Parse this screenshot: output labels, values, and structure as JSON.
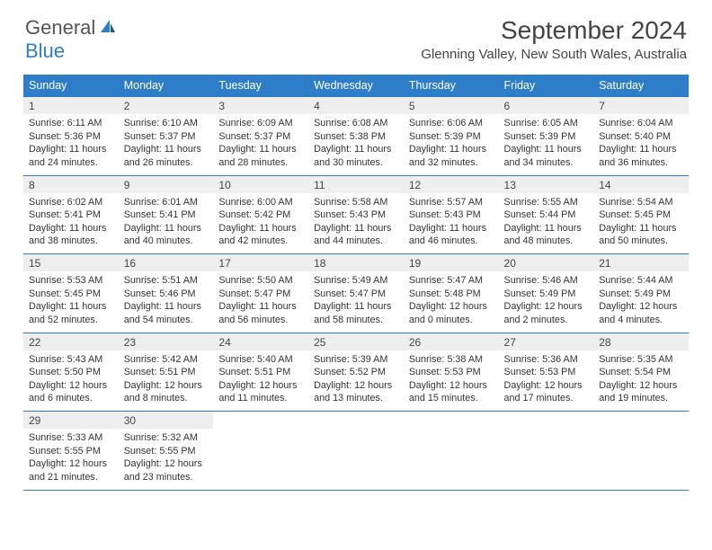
{
  "brand": {
    "text1": "General",
    "text2": "Blue"
  },
  "title": "September 2024",
  "location": "Glenning Valley, New South Wales, Australia",
  "colors": {
    "header_bg": "#2d7dc9",
    "header_text": "#ffffff",
    "daynum_bg": "#eeeeee",
    "border": "#2d7dc9",
    "body_text": "#333333",
    "title_text": "#444444",
    "logo_gray": "#555555",
    "logo_blue": "#2d7dc9",
    "page_bg": "#ffffff"
  },
  "typography": {
    "title_fontsize": 28,
    "location_fontsize": 15,
    "header_fontsize": 12.5,
    "daynum_fontsize": 12,
    "body_fontsize": 10.8
  },
  "calendar": {
    "type": "table",
    "columns": [
      "Sunday",
      "Monday",
      "Tuesday",
      "Wednesday",
      "Thursday",
      "Friday",
      "Saturday"
    ],
    "weeks": [
      [
        {
          "n": "1",
          "sr": "Sunrise: 6:11 AM",
          "ss": "Sunset: 5:36 PM",
          "d1": "Daylight: 11 hours",
          "d2": "and 24 minutes."
        },
        {
          "n": "2",
          "sr": "Sunrise: 6:10 AM",
          "ss": "Sunset: 5:37 PM",
          "d1": "Daylight: 11 hours",
          "d2": "and 26 minutes."
        },
        {
          "n": "3",
          "sr": "Sunrise: 6:09 AM",
          "ss": "Sunset: 5:37 PM",
          "d1": "Daylight: 11 hours",
          "d2": "and 28 minutes."
        },
        {
          "n": "4",
          "sr": "Sunrise: 6:08 AM",
          "ss": "Sunset: 5:38 PM",
          "d1": "Daylight: 11 hours",
          "d2": "and 30 minutes."
        },
        {
          "n": "5",
          "sr": "Sunrise: 6:06 AM",
          "ss": "Sunset: 5:39 PM",
          "d1": "Daylight: 11 hours",
          "d2": "and 32 minutes."
        },
        {
          "n": "6",
          "sr": "Sunrise: 6:05 AM",
          "ss": "Sunset: 5:39 PM",
          "d1": "Daylight: 11 hours",
          "d2": "and 34 minutes."
        },
        {
          "n": "7",
          "sr": "Sunrise: 6:04 AM",
          "ss": "Sunset: 5:40 PM",
          "d1": "Daylight: 11 hours",
          "d2": "and 36 minutes."
        }
      ],
      [
        {
          "n": "8",
          "sr": "Sunrise: 6:02 AM",
          "ss": "Sunset: 5:41 PM",
          "d1": "Daylight: 11 hours",
          "d2": "and 38 minutes."
        },
        {
          "n": "9",
          "sr": "Sunrise: 6:01 AM",
          "ss": "Sunset: 5:41 PM",
          "d1": "Daylight: 11 hours",
          "d2": "and 40 minutes."
        },
        {
          "n": "10",
          "sr": "Sunrise: 6:00 AM",
          "ss": "Sunset: 5:42 PM",
          "d1": "Daylight: 11 hours",
          "d2": "and 42 minutes."
        },
        {
          "n": "11",
          "sr": "Sunrise: 5:58 AM",
          "ss": "Sunset: 5:43 PM",
          "d1": "Daylight: 11 hours",
          "d2": "and 44 minutes."
        },
        {
          "n": "12",
          "sr": "Sunrise: 5:57 AM",
          "ss": "Sunset: 5:43 PM",
          "d1": "Daylight: 11 hours",
          "d2": "and 46 minutes."
        },
        {
          "n": "13",
          "sr": "Sunrise: 5:55 AM",
          "ss": "Sunset: 5:44 PM",
          "d1": "Daylight: 11 hours",
          "d2": "and 48 minutes."
        },
        {
          "n": "14",
          "sr": "Sunrise: 5:54 AM",
          "ss": "Sunset: 5:45 PM",
          "d1": "Daylight: 11 hours",
          "d2": "and 50 minutes."
        }
      ],
      [
        {
          "n": "15",
          "sr": "Sunrise: 5:53 AM",
          "ss": "Sunset: 5:45 PM",
          "d1": "Daylight: 11 hours",
          "d2": "and 52 minutes."
        },
        {
          "n": "16",
          "sr": "Sunrise: 5:51 AM",
          "ss": "Sunset: 5:46 PM",
          "d1": "Daylight: 11 hours",
          "d2": "and 54 minutes."
        },
        {
          "n": "17",
          "sr": "Sunrise: 5:50 AM",
          "ss": "Sunset: 5:47 PM",
          "d1": "Daylight: 11 hours",
          "d2": "and 56 minutes."
        },
        {
          "n": "18",
          "sr": "Sunrise: 5:49 AM",
          "ss": "Sunset: 5:47 PM",
          "d1": "Daylight: 11 hours",
          "d2": "and 58 minutes."
        },
        {
          "n": "19",
          "sr": "Sunrise: 5:47 AM",
          "ss": "Sunset: 5:48 PM",
          "d1": "Daylight: 12 hours",
          "d2": "and 0 minutes."
        },
        {
          "n": "20",
          "sr": "Sunrise: 5:46 AM",
          "ss": "Sunset: 5:49 PM",
          "d1": "Daylight: 12 hours",
          "d2": "and 2 minutes."
        },
        {
          "n": "21",
          "sr": "Sunrise: 5:44 AM",
          "ss": "Sunset: 5:49 PM",
          "d1": "Daylight: 12 hours",
          "d2": "and 4 minutes."
        }
      ],
      [
        {
          "n": "22",
          "sr": "Sunrise: 5:43 AM",
          "ss": "Sunset: 5:50 PM",
          "d1": "Daylight: 12 hours",
          "d2": "and 6 minutes."
        },
        {
          "n": "23",
          "sr": "Sunrise: 5:42 AM",
          "ss": "Sunset: 5:51 PM",
          "d1": "Daylight: 12 hours",
          "d2": "and 8 minutes."
        },
        {
          "n": "24",
          "sr": "Sunrise: 5:40 AM",
          "ss": "Sunset: 5:51 PM",
          "d1": "Daylight: 12 hours",
          "d2": "and 11 minutes."
        },
        {
          "n": "25",
          "sr": "Sunrise: 5:39 AM",
          "ss": "Sunset: 5:52 PM",
          "d1": "Daylight: 12 hours",
          "d2": "and 13 minutes."
        },
        {
          "n": "26",
          "sr": "Sunrise: 5:38 AM",
          "ss": "Sunset: 5:53 PM",
          "d1": "Daylight: 12 hours",
          "d2": "and 15 minutes."
        },
        {
          "n": "27",
          "sr": "Sunrise: 5:36 AM",
          "ss": "Sunset: 5:53 PM",
          "d1": "Daylight: 12 hours",
          "d2": "and 17 minutes."
        },
        {
          "n": "28",
          "sr": "Sunrise: 5:35 AM",
          "ss": "Sunset: 5:54 PM",
          "d1": "Daylight: 12 hours",
          "d2": "and 19 minutes."
        }
      ],
      [
        {
          "n": "29",
          "sr": "Sunrise: 5:33 AM",
          "ss": "Sunset: 5:55 PM",
          "d1": "Daylight: 12 hours",
          "d2": "and 21 minutes."
        },
        {
          "n": "30",
          "sr": "Sunrise: 5:32 AM",
          "ss": "Sunset: 5:55 PM",
          "d1": "Daylight: 12 hours",
          "d2": "and 23 minutes."
        },
        null,
        null,
        null,
        null,
        null
      ]
    ]
  }
}
